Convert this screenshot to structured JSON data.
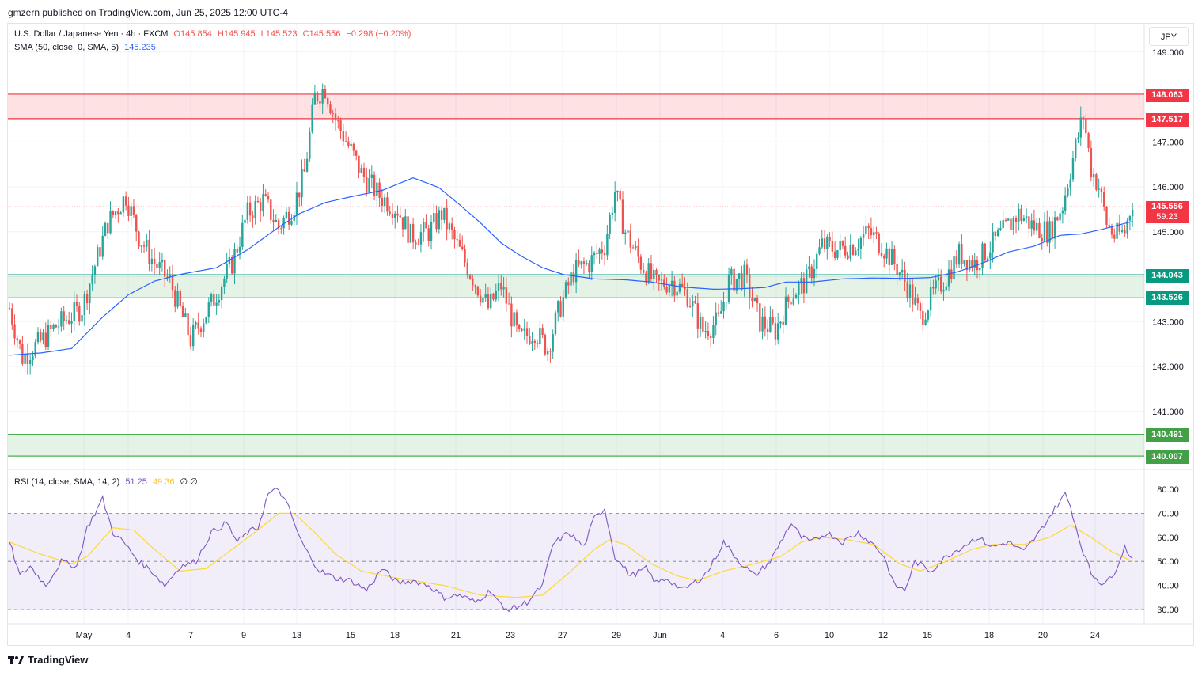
{
  "header": {
    "published": "gmzern published on TradingView.com, Jun 25, 2025 12:00 UTC-4"
  },
  "legend": {
    "symbol": "U.S. Dollar / Japanese Yen · 4h · FXCM",
    "o": "O145.854",
    "h": "H145.945",
    "l": "L145.523",
    "c": "C145.556",
    "change": "−0.298 (−0.20%)",
    "sma_label": "SMA (50, close, 0, SMA, 5)",
    "sma_value": "145.235",
    "rsi_label": "RSI (14, close, SMA, 14, 2)",
    "rsi_value": "51.25",
    "rsi_ma_value": "49.36",
    "rsi_extra": "∅  ∅"
  },
  "currency_button": "JPY",
  "footer": {
    "brand": "TradingView"
  },
  "colors": {
    "up": "#26a69a",
    "down": "#ef5350",
    "sma": "#2962ff",
    "rsi": "#7e57c2",
    "rsi_ma": "#fdd835",
    "resistance": "#f23645",
    "support": "#089981",
    "support2": "#4caf50"
  },
  "price_badges": {
    "r_top": "148.063",
    "r_bottom": "147.517",
    "current": "145.556",
    "countdown": "59:23",
    "s_top": "144.043",
    "s_bottom": "143.526",
    "s2_top": "140.491",
    "s2_bottom": "140.007"
  },
  "chart_data": {
    "type": "candlestick",
    "title": "U.S. Dollar / Japanese Yen · 4h · FXCM",
    "y_ticks": [
      "149.000",
      "148.000",
      "147.000",
      "146.000",
      "145.000",
      "144.000",
      "143.000",
      "142.000",
      "141.000"
    ],
    "rsi_ticks": [
      "80.00",
      "70.00",
      "60.00",
      "50.00",
      "40.00",
      "30.00"
    ],
    "x_labels": [
      "May",
      "4",
      "7",
      "9",
      "13",
      "15",
      "18",
      "21",
      "23",
      "27",
      "29",
      "Jun",
      "4",
      "6",
      "10",
      "12",
      "15",
      "18",
      "20",
      "24"
    ],
    "ylim": [
      139.5,
      149.5
    ],
    "zones": [
      {
        "kind": "resistance",
        "top": 148.063,
        "bottom": 147.517
      },
      {
        "kind": "support",
        "top": 144.043,
        "bottom": 143.526
      },
      {
        "kind": "support",
        "top": 140.491,
        "bottom": 140.007
      }
    ],
    "last_price": 145.556,
    "close_path": [
      [
        0,
        143.3
      ],
      [
        5,
        142.2
      ],
      [
        13,
        142.6
      ],
      [
        18,
        142.9
      ],
      [
        28,
        143.3
      ],
      [
        38,
        145.2
      ],
      [
        45,
        145.8
      ],
      [
        50,
        144.9
      ],
      [
        56,
        144.3
      ],
      [
        62,
        143.9
      ],
      [
        70,
        142.6
      ],
      [
        78,
        143.4
      ],
      [
        86,
        144.3
      ],
      [
        92,
        145.4
      ],
      [
        98,
        145.7
      ],
      [
        104,
        145.1
      ],
      [
        110,
        145.6
      ],
      [
        114,
        146.3
      ],
      [
        118,
        148.0
      ],
      [
        122,
        148.2
      ],
      [
        126,
        147.5
      ],
      [
        132,
        146.8
      ],
      [
        136,
        146.3
      ],
      [
        143,
        145.8
      ],
      [
        150,
        145.5
      ],
      [
        155,
        144.9
      ],
      [
        162,
        145.0
      ],
      [
        167,
        145.4
      ],
      [
        172,
        144.8
      ],
      [
        178,
        144.1
      ],
      [
        185,
        143.3
      ],
      [
        190,
        143.8
      ],
      [
        197,
        142.6
      ],
      [
        203,
        142.8
      ],
      [
        208,
        142.4
      ],
      [
        212,
        143.2
      ],
      [
        218,
        144.1
      ],
      [
        224,
        144.3
      ],
      [
        230,
        144.7
      ],
      [
        234,
        145.9
      ],
      [
        238,
        145.0
      ],
      [
        244,
        144.3
      ],
      [
        250,
        143.8
      ],
      [
        256,
        143.9
      ],
      [
        262,
        143.6
      ],
      [
        268,
        142.8
      ],
      [
        274,
        143.0
      ],
      [
        278,
        143.9
      ],
      [
        284,
        144.0
      ],
      [
        290,
        143.0
      ],
      [
        296,
        142.8
      ],
      [
        302,
        143.6
      ],
      [
        308,
        143.9
      ],
      [
        314,
        144.7
      ],
      [
        320,
        144.6
      ],
      [
        326,
        144.7
      ],
      [
        332,
        145.0
      ],
      [
        337,
        144.7
      ],
      [
        342,
        144.3
      ],
      [
        347,
        143.8
      ],
      [
        352,
        143.1
      ],
      [
        357,
        143.6
      ],
      [
        362,
        144.0
      ],
      [
        367,
        144.5
      ],
      [
        373,
        144.3
      ],
      [
        378,
        144.6
      ],
      [
        384,
        145.0
      ],
      [
        390,
        145.4
      ],
      [
        396,
        145.1
      ],
      [
        402,
        145.0
      ],
      [
        407,
        145.6
      ],
      [
        412,
        146.9
      ],
      [
        415,
        147.6
      ],
      [
        418,
        146.4
      ],
      [
        421,
        146.0
      ],
      [
        424,
        145.2
      ],
      [
        427,
        144.9
      ],
      [
        431,
        145.0
      ],
      [
        434,
        145.7
      ]
    ],
    "rsi_path": [
      [
        0,
        58
      ],
      [
        4,
        44
      ],
      [
        8,
        48
      ],
      [
        14,
        40
      ],
      [
        20,
        50
      ],
      [
        26,
        48
      ],
      [
        30,
        64
      ],
      [
        36,
        76
      ],
      [
        40,
        62
      ],
      [
        44,
        58
      ],
      [
        50,
        50
      ],
      [
        55,
        46
      ],
      [
        60,
        40
      ],
      [
        66,
        48
      ],
      [
        72,
        50
      ],
      [
        78,
        62
      ],
      [
        84,
        66
      ],
      [
        88,
        58
      ],
      [
        92,
        62
      ],
      [
        96,
        64
      ],
      [
        100,
        78
      ],
      [
        104,
        80
      ],
      [
        108,
        72
      ],
      [
        112,
        60
      ],
      [
        116,
        52
      ],
      [
        120,
        46
      ],
      [
        126,
        43
      ],
      [
        132,
        42
      ],
      [
        138,
        38
      ],
      [
        144,
        47
      ],
      [
        150,
        41
      ],
      [
        156,
        42
      ],
      [
        162,
        40
      ],
      [
        168,
        35
      ],
      [
        174,
        36
      ],
      [
        180,
        33
      ],
      [
        186,
        38
      ],
      [
        191,
        30
      ],
      [
        196,
        31
      ],
      [
        200,
        33
      ],
      [
        206,
        40
      ],
      [
        210,
        57
      ],
      [
        216,
        62
      ],
      [
        222,
        56
      ],
      [
        226,
        68
      ],
      [
        230,
        72
      ],
      [
        234,
        52
      ],
      [
        240,
        44
      ],
      [
        246,
        47
      ],
      [
        250,
        41
      ],
      [
        254,
        43
      ],
      [
        260,
        38
      ],
      [
        266,
        42
      ],
      [
        270,
        46
      ],
      [
        276,
        58
      ],
      [
        282,
        50
      ],
      [
        288,
        44
      ],
      [
        294,
        50
      ],
      [
        298,
        58
      ],
      [
        302,
        66
      ],
      [
        306,
        60
      ],
      [
        310,
        58
      ],
      [
        316,
        62
      ],
      [
        322,
        58
      ],
      [
        328,
        62
      ],
      [
        334,
        57
      ],
      [
        338,
        52
      ],
      [
        342,
        40
      ],
      [
        346,
        38
      ],
      [
        350,
        50
      ],
      [
        356,
        46
      ],
      [
        362,
        52
      ],
      [
        368,
        56
      ],
      [
        374,
        60
      ],
      [
        380,
        56
      ],
      [
        386,
        58
      ],
      [
        392,
        54
      ],
      [
        398,
        62
      ],
      [
        404,
        72
      ],
      [
        408,
        78
      ],
      [
        410,
        73
      ],
      [
        414,
        57
      ],
      [
        418,
        45
      ],
      [
        422,
        41
      ],
      [
        426,
        43
      ],
      [
        431,
        56
      ],
      [
        434,
        51
      ]
    ],
    "rsi_ma_path": [
      [
        0,
        58
      ],
      [
        12,
        53
      ],
      [
        24,
        49
      ],
      [
        30,
        52
      ],
      [
        40,
        64
      ],
      [
        48,
        63
      ],
      [
        56,
        55
      ],
      [
        66,
        46
      ],
      [
        76,
        47
      ],
      [
        86,
        55
      ],
      [
        96,
        63
      ],
      [
        104,
        70
      ],
      [
        110,
        70
      ],
      [
        118,
        62
      ],
      [
        126,
        53
      ],
      [
        136,
        46
      ],
      [
        150,
        43
      ],
      [
        168,
        40
      ],
      [
        182,
        36
      ],
      [
        196,
        35
      ],
      [
        206,
        36
      ],
      [
        216,
        45
      ],
      [
        226,
        55
      ],
      [
        232,
        59
      ],
      [
        238,
        57
      ],
      [
        248,
        49
      ],
      [
        258,
        44
      ],
      [
        266,
        42
      ],
      [
        276,
        46
      ],
      [
        288,
        49
      ],
      [
        298,
        52
      ],
      [
        306,
        58
      ],
      [
        314,
        60
      ],
      [
        324,
        59
      ],
      [
        334,
        57
      ],
      [
        344,
        49
      ],
      [
        352,
        46
      ],
      [
        362,
        50
      ],
      [
        372,
        55
      ],
      [
        380,
        57
      ],
      [
        392,
        57
      ],
      [
        402,
        60
      ],
      [
        410,
        65
      ],
      [
        418,
        60
      ],
      [
        426,
        54
      ],
      [
        434,
        50
      ]
    ],
    "sma_path": [
      [
        0,
        142.25
      ],
      [
        12,
        142.3
      ],
      [
        24,
        142.4
      ],
      [
        36,
        143.1
      ],
      [
        46,
        143.6
      ],
      [
        56,
        143.9
      ],
      [
        66,
        144.05
      ],
      [
        80,
        144.2
      ],
      [
        92,
        144.6
      ],
      [
        104,
        145.1
      ],
      [
        112,
        145.4
      ],
      [
        122,
        145.65
      ],
      [
        132,
        145.78
      ],
      [
        144,
        145.92
      ],
      [
        156,
        146.2
      ],
      [
        166,
        145.98
      ],
      [
        174,
        145.6
      ],
      [
        182,
        145.2
      ],
      [
        190,
        144.75
      ],
      [
        198,
        144.45
      ],
      [
        206,
        144.2
      ],
      [
        214,
        144.05
      ],
      [
        226,
        143.95
      ],
      [
        238,
        143.93
      ],
      [
        248,
        143.88
      ],
      [
        260,
        143.77
      ],
      [
        272,
        143.72
      ],
      [
        282,
        143.73
      ],
      [
        292,
        143.76
      ],
      [
        300,
        143.88
      ],
      [
        310,
        143.88
      ],
      [
        322,
        143.95
      ],
      [
        334,
        143.97
      ],
      [
        346,
        143.96
      ],
      [
        356,
        143.98
      ],
      [
        366,
        144.1
      ],
      [
        376,
        144.3
      ],
      [
        386,
        144.55
      ],
      [
        396,
        144.68
      ],
      [
        406,
        144.92
      ],
      [
        414,
        144.95
      ],
      [
        422,
        145.05
      ],
      [
        434,
        145.23
      ]
    ]
  }
}
